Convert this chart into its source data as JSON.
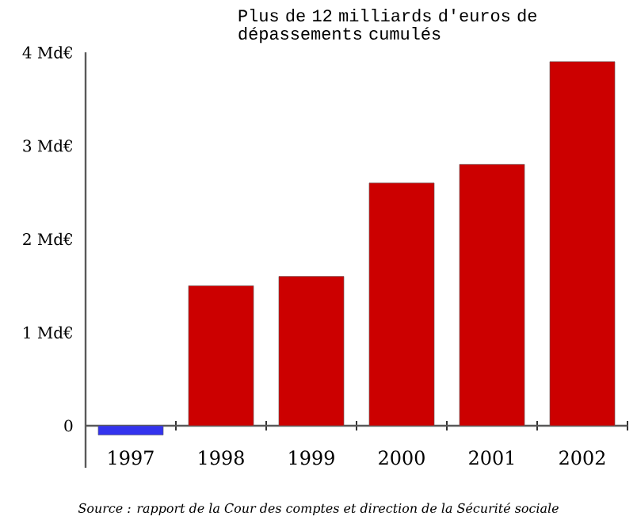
{
  "chart_data": {
    "type": "bar",
    "title": "Plus de 12 milliards d'euros de dépassements cumulés",
    "categories": [
      "1997",
      "1998",
      "1999",
      "2000",
      "2001",
      "2002"
    ],
    "values": [
      -0.1,
      1.5,
      1.6,
      2.6,
      2.8,
      3.9
    ],
    "colors": [
      "#3333ee",
      "#cc0000",
      "#cc0000",
      "#cc0000",
      "#cc0000",
      "#cc0000"
    ],
    "ylim": [
      -0.45,
      4
    ],
    "yticks": [
      0,
      {
        "value": 1,
        "label": "1 Md€"
      },
      {
        "value": 2,
        "label": "2 Md€"
      },
      {
        "value": 3,
        "label": "3 Md€"
      },
      {
        "value": 4,
        "label": "4 Md€"
      }
    ],
    "annotations": [
      "Source : rapport de la Cour des comptes et direction de la Sécurité sociale"
    ]
  }
}
